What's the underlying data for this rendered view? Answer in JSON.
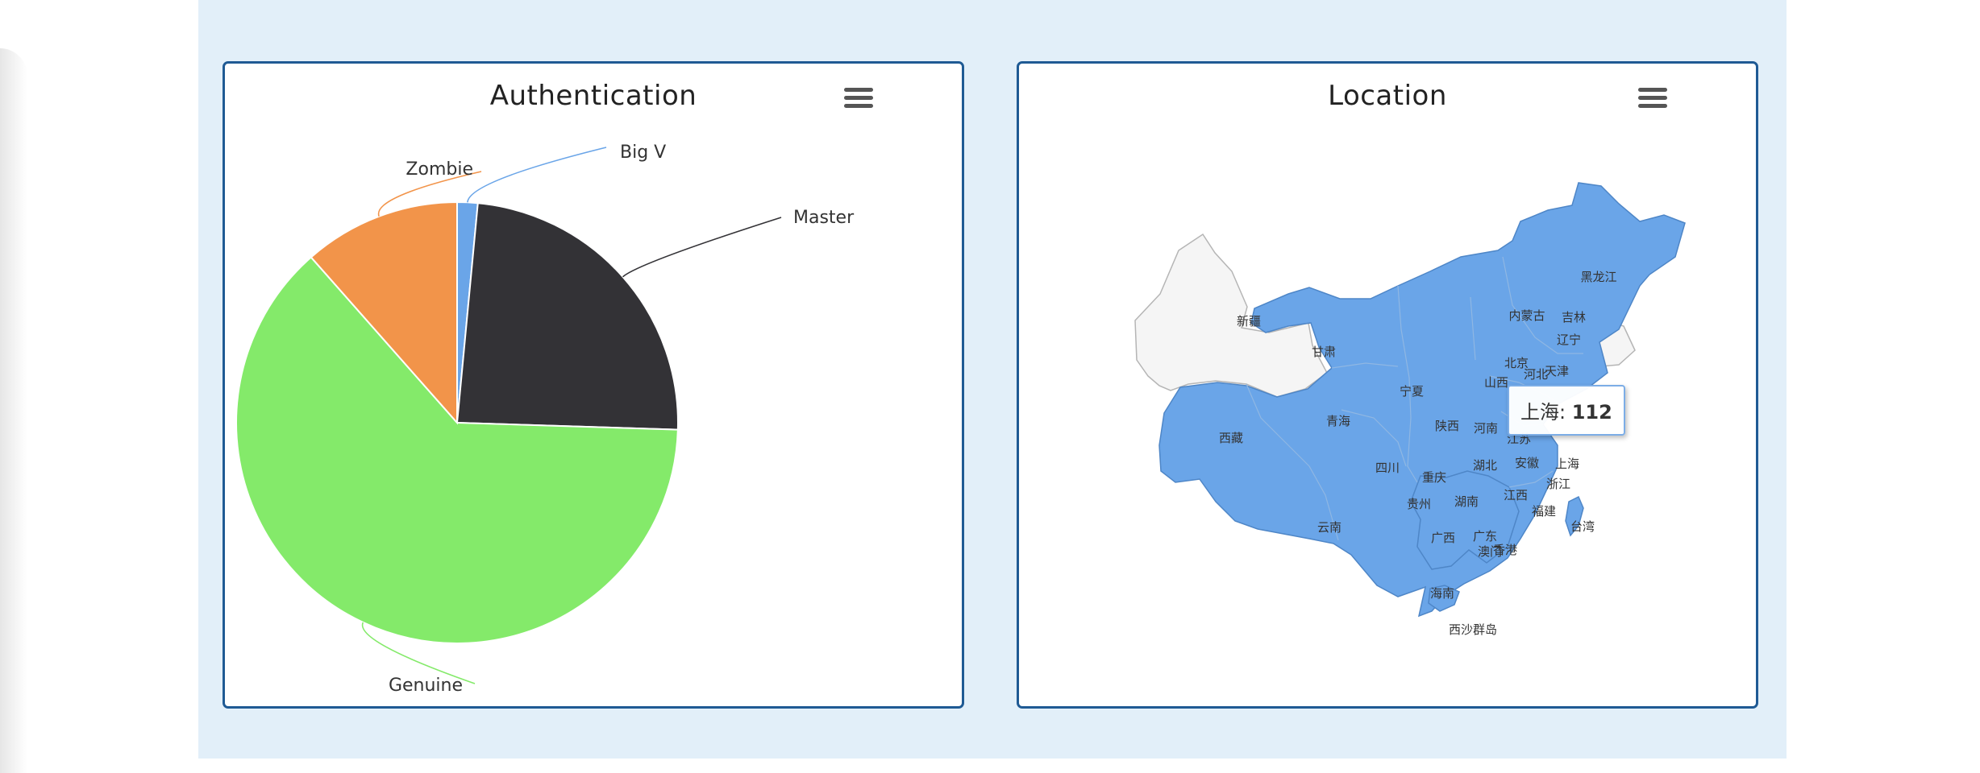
{
  "panels": {
    "authentication": {
      "title": "Authentication",
      "menu_icon": "hamburger-menu-icon"
    },
    "location": {
      "title": "Location",
      "menu_icon": "hamburger-menu-icon"
    }
  },
  "chart_data": [
    {
      "type": "pie",
      "title": "Authentication",
      "slices": [
        {
          "name": "Big V",
          "value": 1.5,
          "color": "#6aa5e8"
        },
        {
          "name": "Master",
          "value": 24.0,
          "color": "#333236"
        },
        {
          "name": "Genuine",
          "value": 63.0,
          "color": "#84ea6a"
        },
        {
          "name": "Zombie",
          "value": 11.5,
          "color": "#f2944a"
        }
      ]
    },
    {
      "type": "map",
      "title": "Location",
      "highlight_color": "#6aa5e8",
      "base_color": "#f5f5f5",
      "provinces": [
        {
          "name": "黑龙江",
          "highlighted": true
        },
        {
          "name": "吉林",
          "highlighted": false
        },
        {
          "name": "辽宁",
          "highlighted": true
        },
        {
          "name": "内蒙古",
          "highlighted": true
        },
        {
          "name": "新疆",
          "highlighted": false
        },
        {
          "name": "甘肃",
          "highlighted": true
        },
        {
          "name": "宁夏",
          "highlighted": true
        },
        {
          "name": "北京",
          "highlighted": true
        },
        {
          "name": "河北",
          "highlighted": true
        },
        {
          "name": "天津",
          "highlighted": true
        },
        {
          "name": "山西",
          "highlighted": false
        },
        {
          "name": "青海",
          "highlighted": false
        },
        {
          "name": "陕西",
          "highlighted": true
        },
        {
          "name": "河南",
          "highlighted": false
        },
        {
          "name": "江苏",
          "highlighted": true
        },
        {
          "name": "西藏",
          "highlighted": true
        },
        {
          "name": "安徽",
          "highlighted": true
        },
        {
          "name": "上海",
          "highlighted": true
        },
        {
          "name": "四川",
          "highlighted": true
        },
        {
          "name": "湖北",
          "highlighted": true
        },
        {
          "name": "重庆",
          "highlighted": true
        },
        {
          "name": "浙江",
          "highlighted": true
        },
        {
          "name": "江西",
          "highlighted": false
        },
        {
          "name": "贵州",
          "highlighted": false
        },
        {
          "name": "湖南",
          "highlighted": false
        },
        {
          "name": "福建",
          "highlighted": true
        },
        {
          "name": "云南",
          "highlighted": true
        },
        {
          "name": "台湾",
          "highlighted": true
        },
        {
          "name": "广西",
          "highlighted": false
        },
        {
          "name": "广东",
          "highlighted": true
        },
        {
          "name": "澳门",
          "highlighted": true
        },
        {
          "name": "香港",
          "highlighted": true
        },
        {
          "name": "海南",
          "highlighted": true
        },
        {
          "name": "西沙群岛",
          "highlighted": false
        }
      ],
      "tooltip": {
        "name": "上海",
        "value": "112"
      }
    }
  ]
}
